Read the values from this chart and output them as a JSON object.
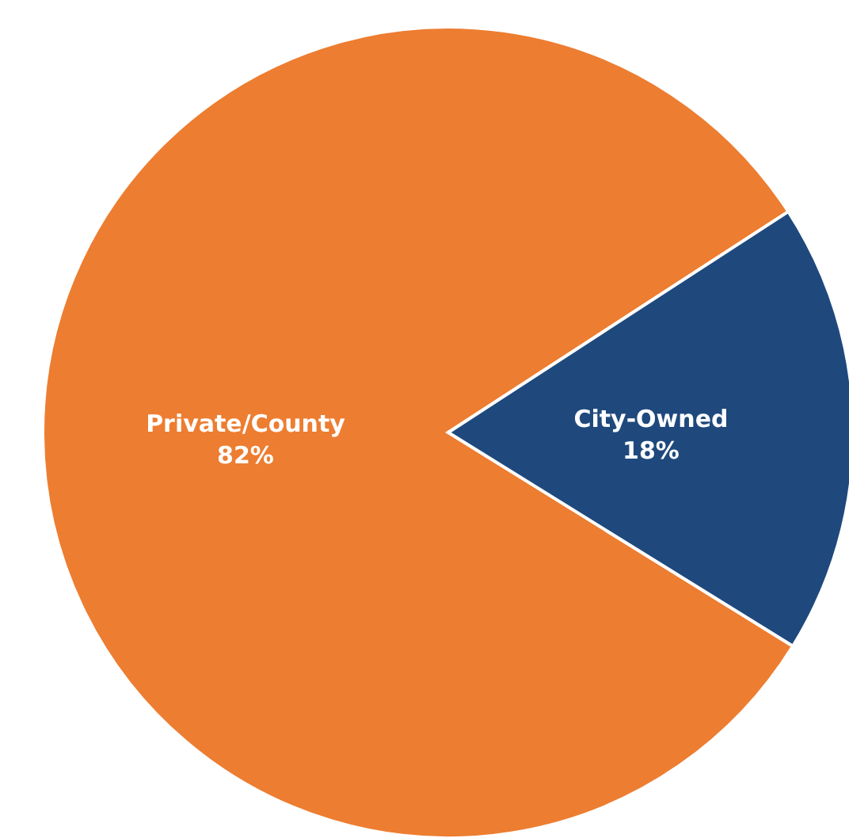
{
  "chart_data": {
    "type": "pie",
    "categories": [
      "Private/County",
      "City-Owned"
    ],
    "values": [
      82,
      18
    ],
    "colors": [
      "#ed7d31",
      "#1f497d"
    ],
    "value_labels": [
      "82%",
      "18%"
    ],
    "legend": false
  }
}
